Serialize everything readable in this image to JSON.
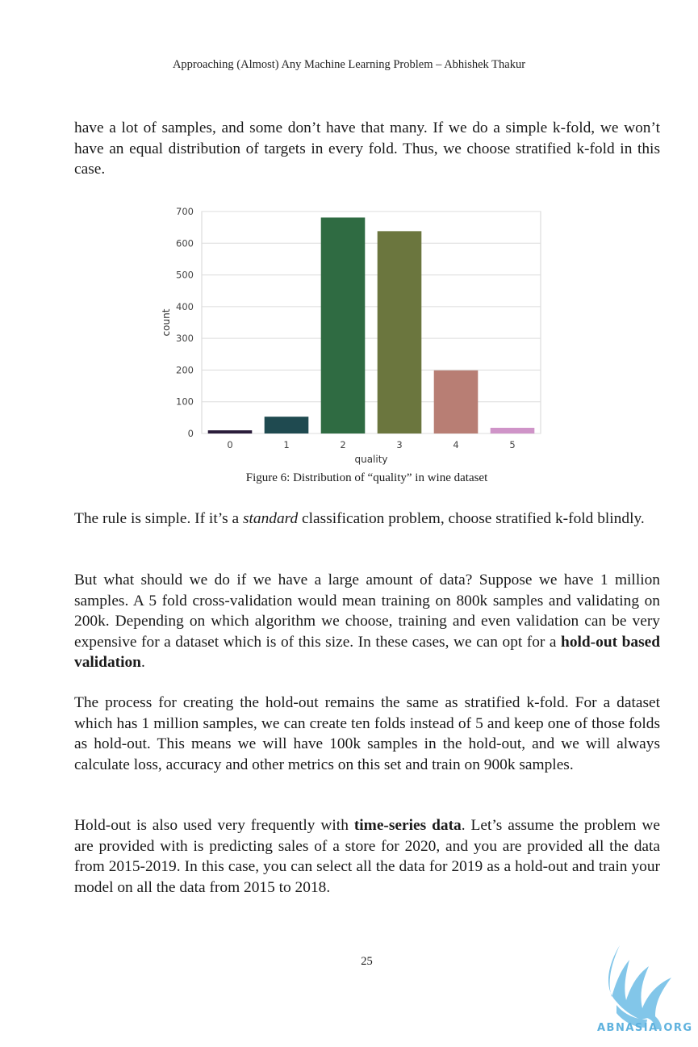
{
  "header": {
    "running_title": "Approaching (Almost) Any Machine Learning Problem – Abhishek Thakur"
  },
  "paragraphs": {
    "p1": "have a lot of samples, and some don’t have that many. If we do a simple k-fold, we won’t have an equal distribution of targets in every fold. Thus, we choose stratified k-fold in this case.",
    "p2_before": "The rule is simple. If it’s a ",
    "p2_italic": "standard",
    "p2_after": " classification problem, choose stratified k-fold blindly.",
    "p3_before": "But what should we do if we have a large amount of data? Suppose we have 1 million samples. A 5 fold cross-validation would mean training on 800k samples and validating on 200k. Depending on which algorithm we choose, training and even validation can be very expensive for a dataset which is of this size. In these cases, we can opt for a ",
    "p3_bold": "hold-out based validation",
    "p3_after": ".",
    "p4": "The process for creating the hold-out remains the same as stratified k-fold. For a dataset which has 1 million samples, we can create ten folds instead of 5 and keep one of those folds as hold-out. This means we will have 100k samples in the hold-out, and we will always calculate loss, accuracy and other metrics on this set and train on 900k samples.",
    "p5_before": "Hold-out is also used very frequently with ",
    "p5_bold": "time-series data",
    "p5_after": ". Let’s assume the problem we are provided with is predicting sales of a store for 2020, and you are provided all the data from 2015-2019. In this case, you can select all the data for 2019 as a hold-out and train your model on all the data from 2015 to 2018."
  },
  "figure": {
    "caption": "Figure 6: Distribution of “quality” in wine dataset"
  },
  "chart_data": {
    "type": "bar",
    "categories": [
      "0",
      "1",
      "2",
      "3",
      "4",
      "5"
    ],
    "values": [
      10,
      53,
      681,
      638,
      199,
      18
    ],
    "colors": [
      "#2a1c3a",
      "#1f4a50",
      "#2f6b42",
      "#6b763e",
      "#b87e74",
      "#cf94c8"
    ],
    "xlabel": "quality",
    "ylabel": "count",
    "ylim": [
      0,
      700
    ],
    "yticks": [
      "0",
      "100",
      "200",
      "300",
      "400",
      "500",
      "600",
      "700"
    ],
    "grid": true
  },
  "footer": {
    "page_number": "25"
  },
  "watermark": {
    "text": "ABNASIA.ORG",
    "accent": "#5fb2de"
  }
}
